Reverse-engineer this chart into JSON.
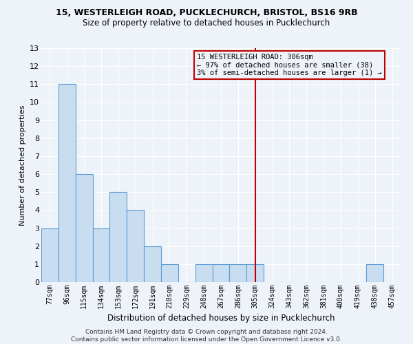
{
  "title1": "15, WESTERLEIGH ROAD, PUCKLECHURCH, BRISTOL, BS16 9RB",
  "title2": "Size of property relative to detached houses in Pucklechurch",
  "xlabel": "Distribution of detached houses by size in Pucklechurch",
  "ylabel": "Number of detached properties",
  "categories": [
    "77sqm",
    "96sqm",
    "115sqm",
    "134sqm",
    "153sqm",
    "172sqm",
    "191sqm",
    "210sqm",
    "229sqm",
    "248sqm",
    "267sqm",
    "286sqm",
    "305sqm",
    "324sqm",
    "343sqm",
    "362sqm",
    "381sqm",
    "400sqm",
    "419sqm",
    "438sqm",
    "457sqm"
  ],
  "values": [
    3,
    11,
    6,
    3,
    5,
    4,
    2,
    1,
    0,
    1,
    1,
    1,
    1,
    0,
    0,
    0,
    0,
    0,
    0,
    1,
    0
  ],
  "bar_color": "#c9ddf0",
  "bar_edge_color": "#5b9bd5",
  "highlight_index": 12,
  "highlight_line_color": "#c00000",
  "annotation_box_edge_color": "#c00000",
  "annotation_line1": "15 WESTERLEIGH ROAD: 306sqm",
  "annotation_line2": "← 97% of detached houses are smaller (38)",
  "annotation_line3": "3% of semi-detached houses are larger (1) →",
  "ylim": [
    0,
    13
  ],
  "yticks": [
    0,
    1,
    2,
    3,
    4,
    5,
    6,
    7,
    8,
    9,
    10,
    11,
    12,
    13
  ],
  "footer": "Contains HM Land Registry data © Crown copyright and database right 2024.\nContains public sector information licensed under the Open Government Licence v3.0.",
  "bg_color": "#eef3f9",
  "grid_color": "#ffffff"
}
